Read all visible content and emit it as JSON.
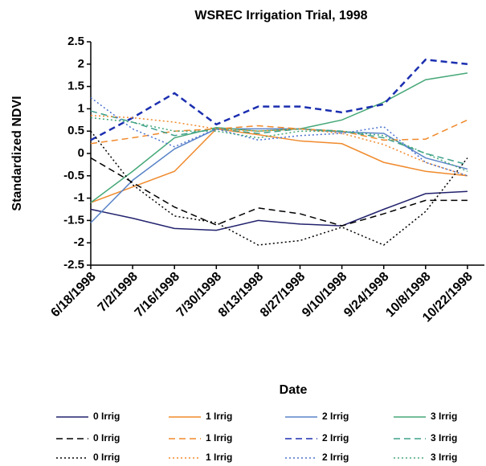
{
  "chart_data": {
    "type": "line",
    "title": "WSREC Irrigation Trial, 1998",
    "x_label": "Date",
    "y_label": "Standardized NDVI",
    "categories": [
      "6/18/1998",
      "7/2/1998",
      "7/16/1998",
      "7/30/1998",
      "8/13/1998",
      "8/27/1998",
      "9/10/1998",
      "9/24/1998",
      "10/8/1998",
      "10/22/1998"
    ],
    "ylim": [
      -2.5,
      2.5
    ],
    "yticks": [
      -2.5,
      -2,
      -1.5,
      -1,
      -0.5,
      0,
      0.5,
      1,
      1.5,
      2,
      2.5
    ],
    "series": [
      {
        "name": "0 Irrig",
        "color": "#22226e",
        "style": "solid",
        "values": [
          -1.25,
          -1.45,
          -1.68,
          -1.72,
          -1.5,
          -1.58,
          -1.62,
          -1.25,
          -0.9,
          -0.85
        ]
      },
      {
        "name": "1 Irrig",
        "color": "#f08a2c",
        "style": "solid",
        "values": [
          -1.1,
          -0.75,
          -0.4,
          0.55,
          0.42,
          0.28,
          0.22,
          -0.2,
          -0.4,
          -0.5
        ]
      },
      {
        "name": "2 Irrig",
        "color": "#5a84c8",
        "style": "solid",
        "values": [
          -1.55,
          -0.6,
          0.1,
          0.55,
          0.55,
          0.55,
          0.48,
          0.45,
          -0.1,
          -0.35
        ]
      },
      {
        "name": "3 Irrig",
        "color": "#46a878",
        "style": "solid",
        "values": [
          -1.1,
          -0.4,
          0.35,
          0.58,
          0.5,
          0.55,
          0.75,
          1.15,
          1.65,
          1.8
        ]
      },
      {
        "name": "0 Irrig",
        "color": "#000000",
        "style": "dashed",
        "values": [
          -0.1,
          -0.65,
          -1.2,
          -1.6,
          -1.22,
          -1.35,
          -1.62,
          -1.35,
          -1.05,
          -1.05
        ]
      },
      {
        "name": "1 Irrig",
        "color": "#f08a2c",
        "style": "dashed",
        "values": [
          0.22,
          0.35,
          0.5,
          0.55,
          0.62,
          0.55,
          0.5,
          0.3,
          0.32,
          0.75
        ]
      },
      {
        "name": "2 Irrig",
        "color": "#1c2fb0",
        "style": "dashed",
        "values": [
          0.3,
          0.8,
          1.35,
          0.65,
          1.05,
          1.05,
          0.92,
          1.1,
          2.1,
          2.0
        ]
      },
      {
        "name": "3 Irrig",
        "color": "#3ea08c",
        "style": "dashed",
        "values": [
          0.95,
          0.7,
          0.4,
          0.55,
          0.45,
          0.55,
          0.5,
          0.35,
          0.0,
          -0.25
        ]
      },
      {
        "name": "0 Irrig",
        "color": "#000000",
        "style": "dotted",
        "values": [
          0.5,
          -0.7,
          -1.4,
          -1.55,
          -2.05,
          -1.95,
          -1.65,
          -2.05,
          -1.3,
          -0.1
        ]
      },
      {
        "name": "1 Irrig",
        "color": "#f08a2c",
        "style": "dotted",
        "values": [
          0.85,
          0.8,
          0.7,
          0.55,
          0.5,
          0.55,
          0.45,
          0.2,
          -0.2,
          -0.5
        ]
      },
      {
        "name": "2 Irrig",
        "color": "#4a70d0",
        "style": "dotted",
        "values": [
          1.25,
          0.55,
          0.15,
          0.55,
          0.3,
          0.4,
          0.45,
          0.6,
          -0.2,
          -0.5
        ]
      },
      {
        "name": "3 Irrig",
        "color": "#46a878",
        "style": "dotted",
        "values": [
          0.8,
          0.7,
          0.5,
          0.5,
          0.35,
          0.5,
          0.5,
          0.4,
          0.0,
          -0.4
        ]
      }
    ]
  }
}
